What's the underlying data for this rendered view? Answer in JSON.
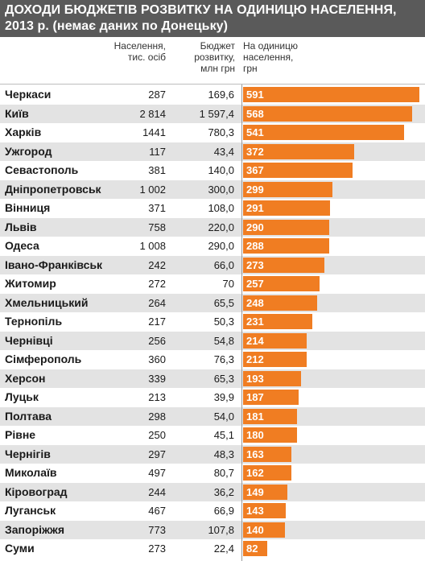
{
  "chart_data": {
    "type": "bar",
    "title": "ДОХОДИ БЮДЖЕТІВ РОЗВИТКУ НА ОДИНИЦЮ НАСЕЛЕННЯ,",
    "subtitle": "2013 р. (немає даних по Донецьку)",
    "columns": {
      "population": [
        "Населення,",
        "тис. осіб"
      ],
      "budget": [
        "Бюджет",
        "розвитку,",
        "млн грн"
      ],
      "per_capita": [
        "На одиницю",
        "населення,",
        "грн"
      ]
    },
    "xlim": [
      0,
      591
    ],
    "colors": {
      "bar": "#f07d22",
      "title_bg": "#5a5a5a",
      "row_shade": "#e3e3e3"
    },
    "rows": [
      {
        "city": "Черкаси",
        "population": "287",
        "budget": "169,6",
        "value": 591
      },
      {
        "city": "Київ",
        "population": "2 814",
        "budget": "1 597,4",
        "value": 568
      },
      {
        "city": "Харків",
        "population": "1441",
        "budget": "780,3",
        "value": 541
      },
      {
        "city": "Ужгород",
        "population": "117",
        "budget": "43,4",
        "value": 372
      },
      {
        "city": "Севастополь",
        "population": "381",
        "budget": "140,0",
        "value": 367
      },
      {
        "city": "Дніпропетровськ",
        "population": "1 002",
        "budget": "300,0",
        "value": 299
      },
      {
        "city": "Вінниця",
        "population": "371",
        "budget": "108,0",
        "value": 291
      },
      {
        "city": "Львів",
        "population": "758",
        "budget": "220,0",
        "value": 290
      },
      {
        "city": "Одеса",
        "population": "1 008",
        "budget": "290,0",
        "value": 288
      },
      {
        "city": "Івано-Франківськ",
        "population": "242",
        "budget": "66,0",
        "value": 273
      },
      {
        "city": "Житомир",
        "population": "272",
        "budget": "70",
        "value": 257
      },
      {
        "city": "Хмельницький",
        "population": "264",
        "budget": "65,5",
        "value": 248
      },
      {
        "city": "Тернопіль",
        "population": "217",
        "budget": "50,3",
        "value": 231
      },
      {
        "city": "Чернівці",
        "population": "256",
        "budget": "54,8",
        "value": 214
      },
      {
        "city": "Сімферополь",
        "population": "360",
        "budget": "76,3",
        "value": 212
      },
      {
        "city": "Херсон",
        "population": "339",
        "budget": "65,3",
        "value": 193
      },
      {
        "city": "Луцьк",
        "population": "213",
        "budget": "39,9",
        "value": 187
      },
      {
        "city": "Полтава",
        "population": "298",
        "budget": "54,0",
        "value": 181
      },
      {
        "city": "Рівне",
        "population": "250",
        "budget": "45,1",
        "value": 180
      },
      {
        "city": "Чернігів",
        "population": "297",
        "budget": "48,3",
        "value": 163
      },
      {
        "city": "Миколаїв",
        "population": "497",
        "budget": "80,7",
        "value": 162
      },
      {
        "city": "Кіровоград",
        "population": "244",
        "budget": "36,2",
        "value": 149
      },
      {
        "city": "Луганськ",
        "population": "467",
        "budget": "66,9",
        "value": 143
      },
      {
        "city": "Запоріжжя",
        "population": "773",
        "budget": "107,8",
        "value": 140
      },
      {
        "city": "Суми",
        "population": "273",
        "budget": "22,4",
        "value": 82
      }
    ]
  }
}
